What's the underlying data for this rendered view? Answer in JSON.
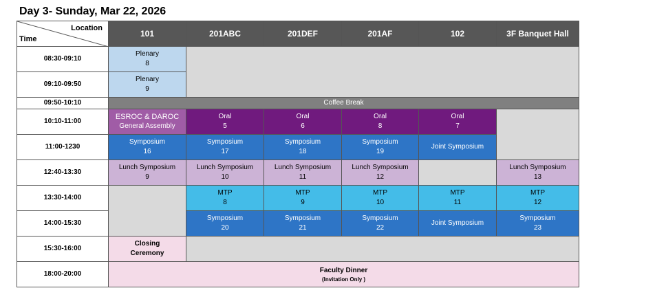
{
  "title": "Day 3- Sunday, Mar 22, 2026",
  "header": {
    "location_label": "Location",
    "time_label": "Time",
    "rooms": [
      "101",
      "201ABC",
      "201DEF",
      "201AF",
      "102",
      "3F Banquet Hall"
    ]
  },
  "times": [
    "08:30-09:10",
    "09:10-09:50",
    "09:50-10:10",
    "10:10-11:00",
    "11:00-1230",
    "12:40-13:30",
    "13:30-14:00",
    "14:00-15:30",
    "15:30-16:00",
    "18:00-20:00"
  ],
  "sessions": {
    "plenary_8": {
      "name": "Plenary",
      "num": "8"
    },
    "plenary_9": {
      "name": "Plenary",
      "num": "9"
    },
    "coffee": "Coffee Break",
    "esroc": {
      "name": "ESROC  & DAROC",
      "sub": "General Assembly"
    },
    "oral_5": {
      "name": "Oral",
      "num": "5"
    },
    "oral_6": {
      "name": "Oral",
      "num": "6"
    },
    "oral_8": {
      "name": "Oral",
      "num": "8"
    },
    "oral_7": {
      "name": "Oral",
      "num": "7"
    },
    "sym_16": {
      "name": "Symposium",
      "num": "16"
    },
    "sym_17": {
      "name": "Symposium",
      "num": "17"
    },
    "sym_18": {
      "name": "Symposium",
      "num": "18"
    },
    "sym_19": {
      "name": "Symposium",
      "num": "19"
    },
    "joint_1": "Joint Symposium",
    "lunch_9": {
      "name": "Lunch Symposium",
      "num": "9"
    },
    "lunch_10": {
      "name": "Lunch Symposium",
      "num": "10"
    },
    "lunch_11": {
      "name": "Lunch Symposium",
      "num": "11"
    },
    "lunch_12": {
      "name": "Lunch Symposium",
      "num": "12"
    },
    "lunch_13": {
      "name": "Lunch Symposium",
      "num": "13"
    },
    "mtp_8": {
      "name": "MTP",
      "num": "8"
    },
    "mtp_9": {
      "name": "MTP",
      "num": "9"
    },
    "mtp_10": {
      "name": "MTP",
      "num": "10"
    },
    "mtp_11": {
      "name": "MTP",
      "num": "11"
    },
    "mtp_12": {
      "name": "MTP",
      "num": "12"
    },
    "sym_20": {
      "name": "Symposium",
      "num": "20"
    },
    "sym_21": {
      "name": "Symposium",
      "num": "21"
    },
    "sym_22": {
      "name": "Symposium",
      "num": "22"
    },
    "joint_2": "Joint Symposium",
    "sym_23": {
      "name": "Symposium",
      "num": "23"
    },
    "closing": {
      "line1": "Closing",
      "line2": "Ceremony"
    },
    "dinner": {
      "name": "Faculty Dinner",
      "note": "(Invitation Only )"
    }
  }
}
